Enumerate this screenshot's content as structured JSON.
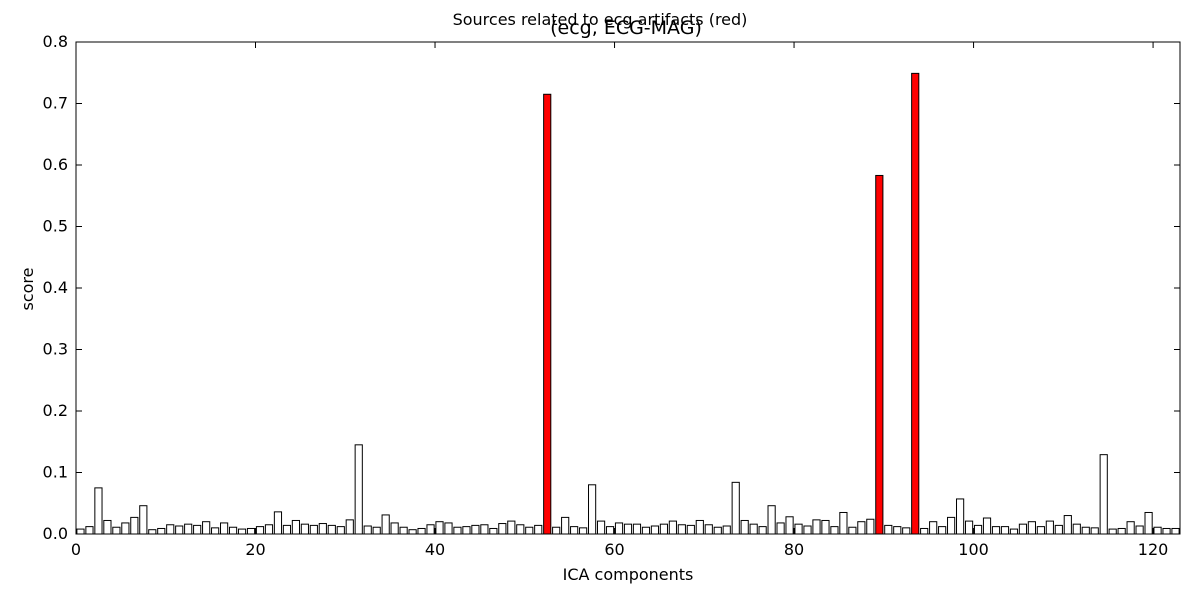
{
  "figure": {
    "suptitle": "Sources related to ecg artifacts (red)"
  },
  "chart_data": {
    "type": "bar",
    "title": "(ecg, ECG-MAG)",
    "xlabel": "ICA components",
    "ylabel": "score",
    "xlim": [
      0,
      123
    ],
    "ylim": [
      0,
      0.8
    ],
    "xticks": [
      0,
      20,
      40,
      60,
      80,
      100,
      120
    ],
    "yticks": [
      0.0,
      0.1,
      0.2,
      0.3,
      0.4,
      0.5,
      0.6,
      0.7,
      0.8
    ],
    "xtick_labels": [
      "0",
      "20",
      "40",
      "60",
      "80",
      "100",
      "120"
    ],
    "ytick_labels": [
      "0.0",
      "0.1",
      "0.2",
      "0.3",
      "0.4",
      "0.5",
      "0.6",
      "0.7",
      "0.8"
    ],
    "grid": false,
    "bar_color": "#ffffff",
    "highlight_color": "#ff0000",
    "edge_color": "#000000",
    "highlighted_components": [
      52,
      89,
      93
    ],
    "values": [
      0.008,
      0.012,
      0.075,
      0.022,
      0.011,
      0.018,
      0.027,
      0.046,
      0.007,
      0.009,
      0.015,
      0.013,
      0.016,
      0.014,
      0.02,
      0.01,
      0.018,
      0.011,
      0.008,
      0.009,
      0.012,
      0.015,
      0.036,
      0.014,
      0.022,
      0.016,
      0.014,
      0.017,
      0.014,
      0.012,
      0.023,
      0.145,
      0.013,
      0.011,
      0.031,
      0.018,
      0.011,
      0.007,
      0.009,
      0.015,
      0.02,
      0.018,
      0.011,
      0.012,
      0.014,
      0.015,
      0.009,
      0.017,
      0.021,
      0.015,
      0.011,
      0.014,
      0.715,
      0.011,
      0.027,
      0.012,
      0.01,
      0.08,
      0.021,
      0.012,
      0.018,
      0.016,
      0.016,
      0.011,
      0.013,
      0.016,
      0.021,
      0.015,
      0.014,
      0.022,
      0.015,
      0.011,
      0.013,
      0.084,
      0.022,
      0.016,
      0.012,
      0.046,
      0.018,
      0.028,
      0.016,
      0.013,
      0.023,
      0.022,
      0.012,
      0.035,
      0.011,
      0.02,
      0.024,
      0.583,
      0.014,
      0.012,
      0.01,
      0.749,
      0.009,
      0.02,
      0.012,
      0.027,
      0.057,
      0.021,
      0.014,
      0.026,
      0.012,
      0.012,
      0.008,
      0.016,
      0.02,
      0.012,
      0.021,
      0.014,
      0.03,
      0.016,
      0.011,
      0.01,
      0.129,
      0.008,
      0.009,
      0.02,
      0.013,
      0.035,
      0.011,
      0.009,
      0.009
    ]
  }
}
